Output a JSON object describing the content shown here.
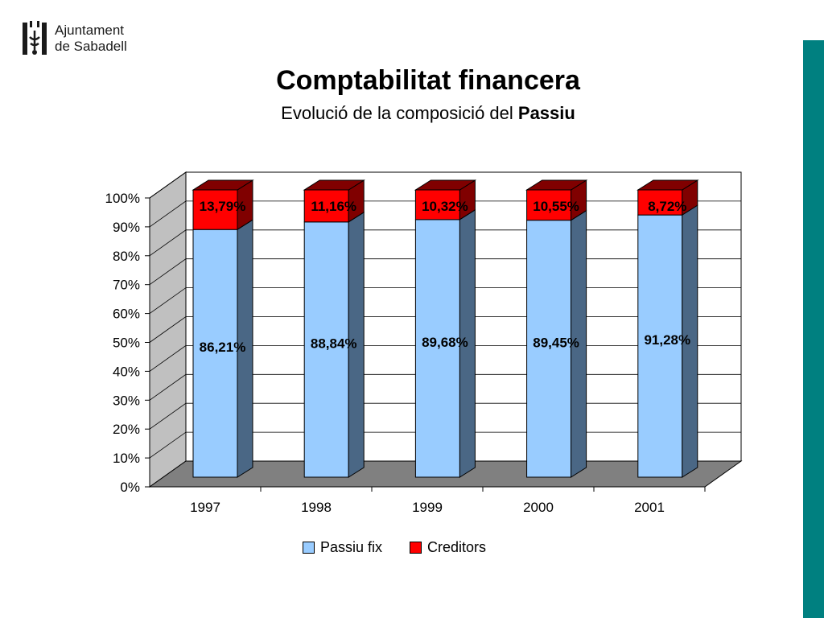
{
  "header": {
    "logo_line1": "Ajuntament",
    "logo_line2": "de Sabadell",
    "title": "Comptabilitat financera",
    "subtitle_prefix": "Evolució de la composició del ",
    "subtitle_bold": "Passiu"
  },
  "colors": {
    "accent_bar": "#008080",
    "passiu_fix": "#99CCFF",
    "passiu_fix_side": "#4A6785",
    "creditors": "#FF0000",
    "creditors_side": "#800000",
    "floor": "#808080",
    "wall": "#C0C0C0"
  },
  "chart_data": {
    "type": "bar",
    "stacked": true,
    "three_d": true,
    "categories": [
      "1997",
      "1998",
      "1999",
      "2000",
      "2001"
    ],
    "series": [
      {
        "name": "Passiu fix",
        "values": [
          86.21,
          88.84,
          89.68,
          89.45,
          91.28
        ],
        "labels": [
          "86,21%",
          "88,84%",
          "89,68%",
          "89,45%",
          "91,28%"
        ]
      },
      {
        "name": "Creditors",
        "values": [
          13.79,
          11.16,
          10.32,
          10.55,
          8.72
        ],
        "labels": [
          "13,79%",
          "11,16%",
          "10,32%",
          "10,55%",
          "8,72%"
        ]
      }
    ],
    "ylim": [
      0,
      100
    ],
    "yticks": [
      "0%",
      "10%",
      "20%",
      "30%",
      "40%",
      "50%",
      "60%",
      "70%",
      "80%",
      "90%",
      "100%"
    ],
    "grid": true,
    "legend": "bottom"
  }
}
